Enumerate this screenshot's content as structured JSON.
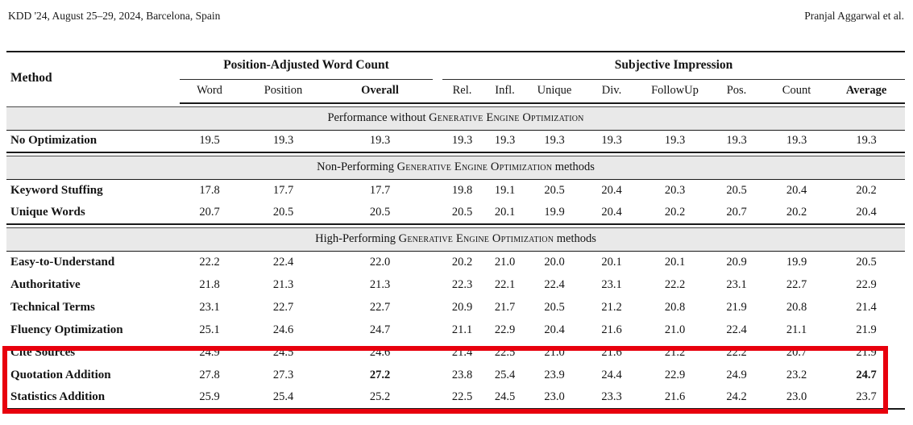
{
  "page_header": {
    "left": "KDD '24, August 25–29, 2024, Barcelona, Spain",
    "right": "Pranjal Aggarwal et al."
  },
  "table": {
    "method_header": "Method",
    "groups": [
      {
        "label": "Position-Adjusted Word Count",
        "columns": [
          "Word",
          "Position",
          "Overall"
        ]
      },
      {
        "label": "Subjective Impression",
        "columns": [
          "Rel.",
          "Infl.",
          "Unique",
          "Div.",
          "FollowUp",
          "Pos.",
          "Count",
          "Average"
        ]
      }
    ],
    "bold_headers": [
      "Method",
      "Overall",
      "Average"
    ],
    "sections": [
      {
        "band": {
          "pre": "Performance without ",
          "smallcaps": "Generative Engine Optimization",
          "post": ""
        },
        "rows": [
          {
            "method": "No Optimization",
            "values": [
              "19.5",
              "19.3",
              "19.3",
              "19.3",
              "19.3",
              "19.3",
              "19.3",
              "19.3",
              "19.3",
              "19.3",
              "19.3"
            ],
            "bold_value_indices": [],
            "highlighted": false
          }
        ]
      },
      {
        "band": {
          "pre": "Non-Performing ",
          "smallcaps": "Generative Engine Optimization",
          "post": " methods"
        },
        "rows": [
          {
            "method": "Keyword Stuffing",
            "values": [
              "17.8",
              "17.7",
              "17.7",
              "19.8",
              "19.1",
              "20.5",
              "20.4",
              "20.3",
              "20.5",
              "20.4",
              "20.2"
            ],
            "bold_value_indices": [],
            "highlighted": false
          },
          {
            "method": "Unique Words",
            "values": [
              "20.7",
              "20.5",
              "20.5",
              "20.5",
              "20.1",
              "19.9",
              "20.4",
              "20.2",
              "20.7",
              "20.2",
              "20.4"
            ],
            "bold_value_indices": [],
            "highlighted": false
          }
        ]
      },
      {
        "band": {
          "pre": "High-Performing ",
          "smallcaps": "Generative Engine Optimization",
          "post": " methods"
        },
        "rows": [
          {
            "method": "Easy-to-Understand",
            "values": [
              "22.2",
              "22.4",
              "22.0",
              "20.2",
              "21.0",
              "20.0",
              "20.1",
              "20.1",
              "20.9",
              "19.9",
              "20.5"
            ],
            "bold_value_indices": [],
            "highlighted": false
          },
          {
            "method": "Authoritative",
            "values": [
              "21.8",
              "21.3",
              "21.3",
              "22.3",
              "22.1",
              "22.4",
              "23.1",
              "22.2",
              "23.1",
              "22.7",
              "22.9"
            ],
            "bold_value_indices": [],
            "highlighted": false
          },
          {
            "method": "Technical Terms",
            "values": [
              "23.1",
              "22.7",
              "22.7",
              "20.9",
              "21.7",
              "20.5",
              "21.2",
              "20.8",
              "21.9",
              "20.8",
              "21.4"
            ],
            "bold_value_indices": [],
            "highlighted": false
          },
          {
            "method": "Fluency Optimization",
            "values": [
              "25.1",
              "24.6",
              "24.7",
              "21.1",
              "22.9",
              "20.4",
              "21.6",
              "21.0",
              "22.4",
              "21.1",
              "21.9"
            ],
            "bold_value_indices": [],
            "highlighted": false
          },
          {
            "method": "Cite Sources",
            "values": [
              "24.9",
              "24.5",
              "24.6",
              "21.4",
              "22.5",
              "21.0",
              "21.6",
              "21.2",
              "22.2",
              "20.7",
              "21.9"
            ],
            "bold_value_indices": [],
            "highlighted": true
          },
          {
            "method": "Quotation Addition",
            "values": [
              "27.8",
              "27.3",
              "27.2",
              "23.8",
              "25.4",
              "23.9",
              "24.4",
              "22.9",
              "24.9",
              "23.2",
              "24.7"
            ],
            "bold_value_indices": [
              2,
              10
            ],
            "highlighted": true
          },
          {
            "method": "Statistics Addition",
            "values": [
              "25.9",
              "25.4",
              "25.2",
              "22.5",
              "24.5",
              "23.0",
              "23.3",
              "21.6",
              "24.2",
              "23.0",
              "23.7"
            ],
            "bold_value_indices": [],
            "highlighted": true
          }
        ]
      }
    ]
  },
  "colors": {
    "highlight_box": "#e8000d",
    "band_background": "#e9e9e9",
    "rule": "#1a1a1a"
  }
}
